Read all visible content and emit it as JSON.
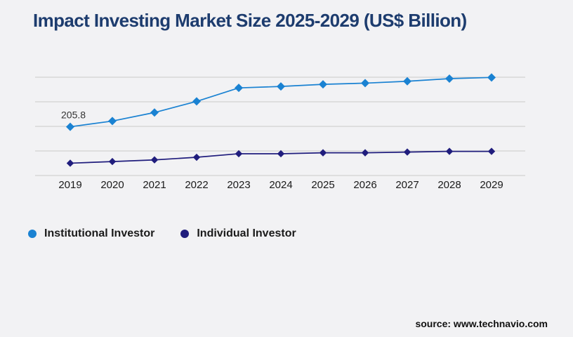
{
  "title": "Impact Investing Market Size 2025-2029 (US$ Billion)",
  "source": "source: www.technavio.com",
  "colors": {
    "background": "#f2f2f4",
    "title": "#1d3c6e",
    "gridline": "#c9c9c9",
    "institutional": "#1a82d2",
    "individual": "#201d7d",
    "tick_label": "#1a1a1a",
    "annotation": "#333333"
  },
  "legend": [
    {
      "label": "Institutional Investor",
      "color": "#1a82d2"
    },
    {
      "label": "Individual Investor",
      "color": "#201d7d"
    }
  ],
  "chart_data": {
    "type": "line",
    "categories": [
      "2019",
      "2020",
      "2021",
      "2022",
      "2023",
      "2024",
      "2025",
      "2026",
      "2027",
      "2028",
      "2029"
    ],
    "series": [
      {
        "name": "Institutional Investor",
        "color": "#1a82d2",
        "marker": "diamond",
        "values": [
          205.8,
          230,
          266,
          313,
          370,
          376,
          385,
          390,
          398,
          409,
          414
        ]
      },
      {
        "name": "Individual Investor",
        "color": "#201d7d",
        "marker": "diamond",
        "values": [
          52,
          59,
          66,
          77,
          92,
          92,
          96,
          96,
          99,
          102,
          102
        ]
      }
    ],
    "annotations": [
      {
        "series": "Institutional Investor",
        "category": "2019",
        "text": "205.8"
      }
    ],
    "title": "Impact Investing Market Size 2025-2029 (US$ Billion)",
    "xlabel": "",
    "ylabel": "",
    "ylim": [
      0,
      415
    ],
    "grid": true,
    "y_axis_labels_visible": false,
    "legend_position": "bottom-left"
  }
}
